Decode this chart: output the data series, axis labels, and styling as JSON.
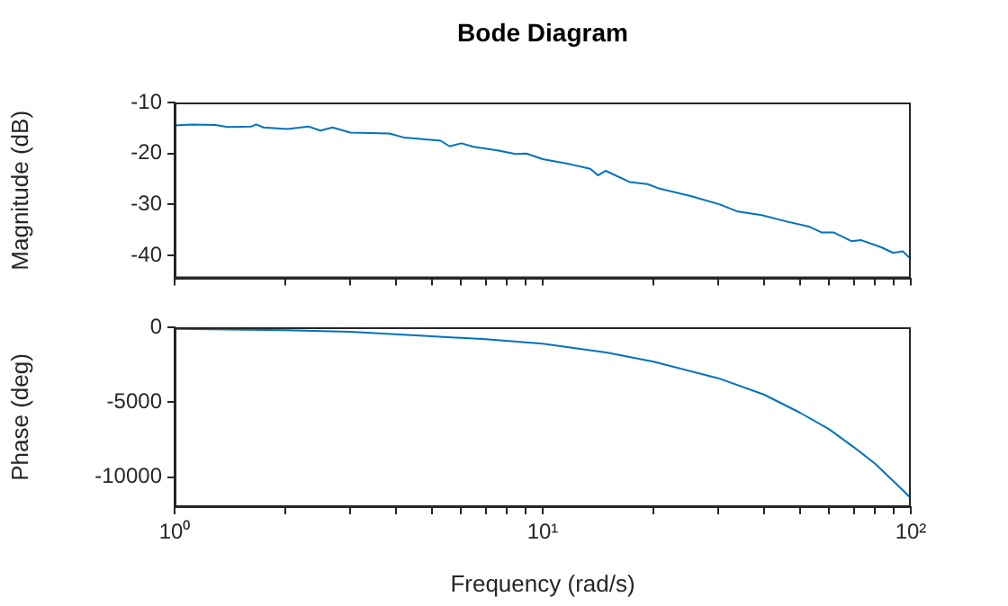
{
  "chart_data": [
    {
      "type": "line",
      "title": "Bode Diagram",
      "ylabel": "Magnitude (dB)",
      "color": "#0072bd",
      "marker": "none",
      "grid": false,
      "tick_labels": "y",
      "x": [
        1.0,
        1.111,
        1.291,
        1.392,
        1.617,
        1.666,
        1.744,
        2.026,
        2.309,
        2.49,
        2.685,
        3.005,
        3.835,
        4.213,
        5.28,
        5.585,
        6.017,
        6.483,
        7.531,
        8.431,
        9.025,
        10.0,
        11.85,
        13.47,
        14.13,
        14.83,
        17.23,
        19.26,
        20.78,
        25.1,
        30.29,
        33.89,
        39.36,
        45.74,
        53.14,
        57.29,
        61.76,
        68.99,
        73.33,
        83.13,
        89.61,
        95.12,
        100
      ],
      "values": [
        -14.5,
        -14.3,
        -14.4,
        -14.8,
        -14.7,
        -14.3,
        -14.9,
        -15.2,
        -14.7,
        -15.5,
        -14.9,
        -15.9,
        -16.1,
        -16.9,
        -17.5,
        -18.6,
        -18.0,
        -18.7,
        -19.4,
        -20.1,
        -20.0,
        -21.1,
        -22.1,
        -23.0,
        -24.3,
        -23.4,
        -25.6,
        -26.0,
        -26.9,
        -28.3,
        -30.0,
        -31.4,
        -32.1,
        -33.3,
        -34.4,
        -35.5,
        -35.5,
        -37.2,
        -37.0,
        -38.4,
        -39.5,
        -39.2,
        -40.7
      ],
      "log": "x",
      "xlim": [
        1,
        100
      ],
      "xticks": [
        {
          "value": 1,
          "label": null
        },
        {
          "value": 2,
          "label": null
        },
        {
          "value": 3,
          "label": null
        },
        {
          "value": 4,
          "label": null
        },
        {
          "value": 5,
          "label": null
        },
        {
          "value": 6,
          "label": null
        },
        {
          "value": 7,
          "label": null
        },
        {
          "value": 8,
          "label": null
        },
        {
          "value": 9,
          "label": null
        },
        {
          "value": 10,
          "label": null
        },
        {
          "value": 20,
          "label": null
        },
        {
          "value": 30,
          "label": null
        },
        {
          "value": 40,
          "label": null
        },
        {
          "value": 50,
          "label": null
        },
        {
          "value": 60,
          "label": null
        },
        {
          "value": 70,
          "label": null
        },
        {
          "value": 80,
          "label": null
        },
        {
          "value": 90,
          "label": null
        },
        {
          "value": 100,
          "label": null
        }
      ],
      "ylim": [
        -44.5,
        -10
      ],
      "yticks": [
        -40,
        -30,
        -20,
        -10
      ]
    },
    {
      "type": "line",
      "xlabel": "Frequency (rad/s)",
      "ylabel": "Phase (deg)",
      "color": "#0072bd",
      "marker": "none",
      "grid": false,
      "x": [
        1,
        2,
        3,
        5,
        7,
        10,
        15,
        20,
        30,
        40,
        50,
        60,
        70,
        80,
        90,
        100
      ],
      "values": [
        -100,
        -200,
        -300,
        -600,
        -800,
        -1100,
        -1700,
        -2300,
        -3400,
        -4500,
        -5700,
        -6800,
        -8000,
        -9100,
        -10300,
        -11400
      ],
      "log": "x",
      "xlim": [
        1,
        100
      ],
      "xticks": [
        {
          "value": 1,
          "label": "10⁰"
        },
        {
          "value": 2,
          "label": null
        },
        {
          "value": 3,
          "label": null
        },
        {
          "value": 4,
          "label": null
        },
        {
          "value": 5,
          "label": null
        },
        {
          "value": 6,
          "label": null
        },
        {
          "value": 7,
          "label": null
        },
        {
          "value": 8,
          "label": null
        },
        {
          "value": 9,
          "label": null
        },
        {
          "value": 10,
          "label": "10¹"
        },
        {
          "value": 20,
          "label": null
        },
        {
          "value": 30,
          "label": null
        },
        {
          "value": 40,
          "label": null
        },
        {
          "value": 50,
          "label": null
        },
        {
          "value": 60,
          "label": null
        },
        {
          "value": 70,
          "label": null
        },
        {
          "value": 80,
          "label": null
        },
        {
          "value": 90,
          "label": null
        },
        {
          "value": 100,
          "label": "10²"
        }
      ],
      "ylim": [
        -12000,
        0
      ],
      "yticks": [
        -10000,
        -5000,
        0
      ]
    }
  ]
}
